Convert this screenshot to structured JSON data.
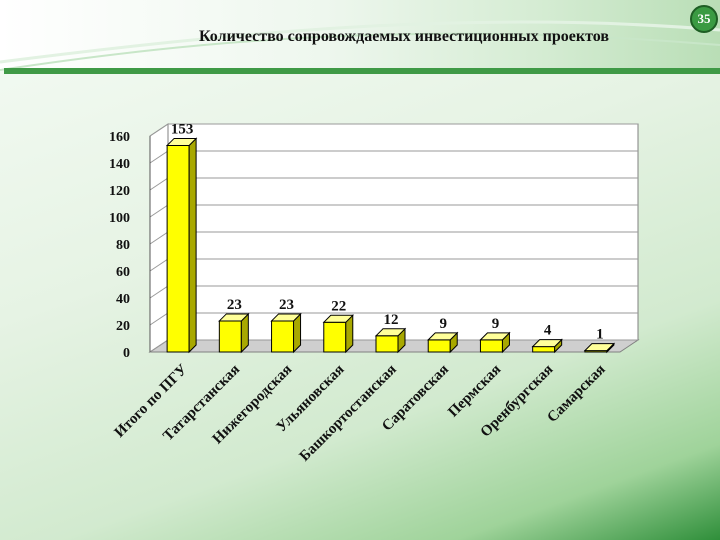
{
  "page": {
    "number": "35"
  },
  "chart_data": {
    "type": "bar",
    "title": "Количество сопровождаемых инвестиционных проектов",
    "categories": [
      "Итого по ПГУ",
      "Татарстанская",
      "Нижегородская",
      "Ульяновская",
      "Башкортостанская",
      "Саратовская",
      "Пермская",
      "Оренбургская",
      "Самарская"
    ],
    "values": [
      153,
      23,
      23,
      22,
      12,
      9,
      9,
      4,
      1
    ],
    "ylim": [
      0,
      160
    ],
    "yticks": [
      0,
      20,
      40,
      60,
      80,
      100,
      120,
      140,
      160
    ],
    "grid": true,
    "style": "3d-column",
    "colors": {
      "bar_front": "#ffff00",
      "bar_side": "#a8a800",
      "bar_top": "#ffff99",
      "outline": "#000000",
      "wall": "#ffffff",
      "floor": "#cfcfcf"
    }
  }
}
